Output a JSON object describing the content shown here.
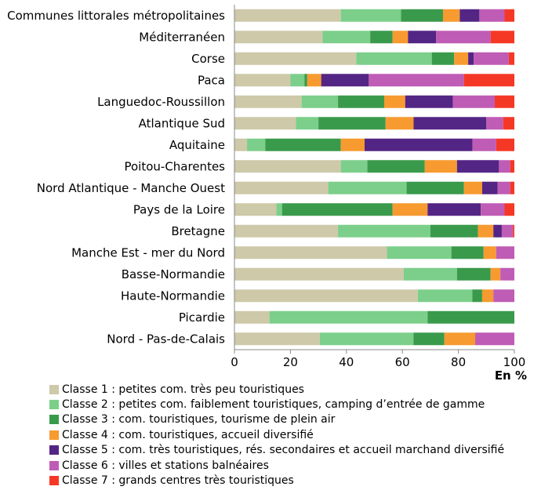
{
  "chart_data": {
    "type": "bar",
    "orientation": "horizontal",
    "stacked": true,
    "xlabel": "En %",
    "xlim": [
      0,
      100
    ],
    "xticks": [
      "0",
      "20",
      "40",
      "60",
      "80",
      "100"
    ],
    "grid": false,
    "legend_position": "bottom",
    "categories": [
      "Communes littorales métropolitaines",
      "Méditerranéen",
      "Corse",
      "Paca",
      "Languedoc-Roussillon",
      "Atlantique Sud",
      "Aquitaine",
      "Poitou-Charentes",
      "Nord Atlantique - Manche Ouest",
      "Pays de la Loire",
      "Bretagne",
      "Manche Est - mer du Nord",
      "Basse-Normandie",
      "Haute-Normandie",
      "Picardie",
      "Nord - Pas-de-Calais"
    ],
    "series": [
      {
        "name": "Classe 1 : petites com. très peu touristiques",
        "color": "#cdc9a9",
        "values": [
          38,
          31.5,
          43.5,
          20,
          24,
          22,
          4.5,
          38,
          33.5,
          15,
          37,
          54.5,
          60.5,
          65.5,
          12.5,
          30.5
        ]
      },
      {
        "name": "Classe 2 : petites com. faiblement touristiques, camping d’entrée de gamme",
        "color": "#7ccf8a",
        "values": [
          21.5,
          17,
          27,
          5,
          13,
          8,
          6.5,
          9.5,
          28,
          2,
          33,
          23,
          19,
          19.5,
          56.5,
          33.5
        ]
      },
      {
        "name": "Classe 3 : com. touristiques, tourisme de plein air",
        "color": "#3a9a4b",
        "values": [
          15,
          8,
          8,
          1,
          16.5,
          24,
          27,
          20.5,
          20.5,
          39.5,
          17,
          11.5,
          12,
          3.5,
          31,
          11
        ]
      },
      {
        "name": "Classe 4 : com. touristiques, accueil diversifié",
        "color": "#f79a30",
        "values": [
          6,
          5.5,
          5,
          5,
          7.5,
          10,
          8.5,
          11.5,
          6.5,
          12.5,
          5.5,
          4.5,
          3.5,
          4,
          0,
          11
        ]
      },
      {
        "name": "Classe 5 : com. très touristiques, rés. secondaires et accueil marchand diversifié",
        "color": "#532585",
        "values": [
          7,
          10,
          2,
          17,
          17,
          26,
          38.5,
          15,
          5.5,
          19,
          3,
          0,
          0,
          0,
          0,
          0
        ]
      },
      {
        "name": "Classe 6 : villes et stations balnéaires",
        "color": "#bf5cb5",
        "values": [
          9,
          19.5,
          12.5,
          34,
          15,
          6,
          8.5,
          4,
          4.5,
          8.5,
          4,
          6.5,
          5,
          7.5,
          0,
          14
        ]
      },
      {
        "name": "Classe 7 : grands centres très touristiques",
        "color": "#f53826",
        "values": [
          3.5,
          8.5,
          2,
          18,
          7,
          4,
          6.5,
          1.5,
          1.5,
          3.5,
          0.5,
          0,
          0,
          0,
          0,
          0
        ]
      }
    ]
  }
}
